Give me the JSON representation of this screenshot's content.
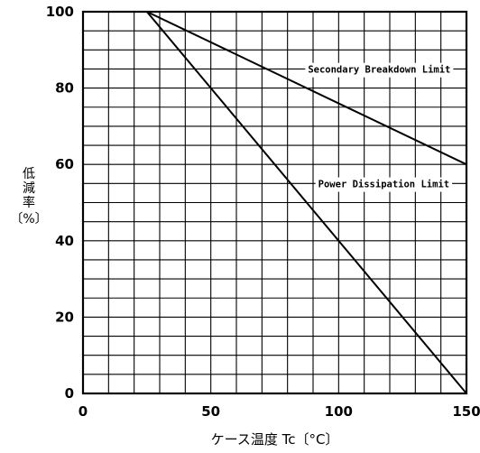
{
  "chart_data": {
    "type": "line",
    "title": "",
    "xlabel": "ケース温度 Tc〔°C〕",
    "ylabel_lines": [
      "低",
      "減",
      "率",
      "〔%〕"
    ],
    "xlim": [
      0,
      150
    ],
    "ylim": [
      0,
      100
    ],
    "x_ticks": [
      0,
      50,
      100,
      150
    ],
    "y_ticks": [
      0,
      20,
      40,
      60,
      80,
      100
    ],
    "x_tick_labels": [
      "0",
      "50",
      "100",
      "150"
    ],
    "y_tick_labels": [
      "0",
      "20",
      "40",
      "60",
      "80",
      "100"
    ],
    "grid": true,
    "grid_x_step": 10,
    "grid_y_step": 5,
    "series": [
      {
        "name": "Secondary Breakdown Limit",
        "x": [
          0,
          25,
          150
        ],
        "y": [
          100,
          100,
          60
        ]
      },
      {
        "name": "Power Dissipation Limit",
        "x": [
          0,
          25,
          150
        ],
        "y": [
          100,
          100,
          0
        ]
      }
    ],
    "annotations": [
      {
        "text": "Secondary Breakdown Limit",
        "x": 88,
        "y": 84
      },
      {
        "text": "Power Dissipation Limit",
        "x": 92,
        "y": 54
      }
    ]
  }
}
